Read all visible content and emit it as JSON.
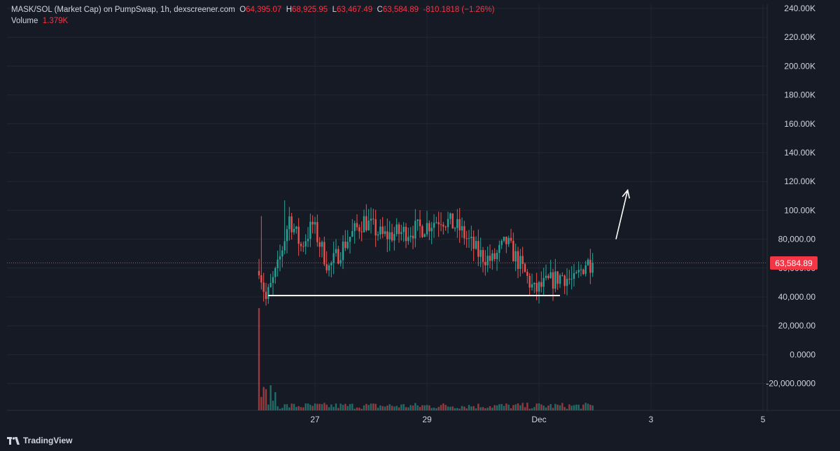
{
  "header": {
    "title": "MASK/SOL (Market Cap) on PumpSwap, 1h, dexscreener.com",
    "o_label": "O",
    "o_value": "64,395.07",
    "h_label": "H",
    "h_value": "68,925.95",
    "l_label": "L",
    "l_value": "63,467.49",
    "c_label": "C",
    "c_value": "63,584.89",
    "change": "-810.1818 (−1.26%)",
    "volume_label": "Volume",
    "volume_value": "1.379K"
  },
  "price_tag": "63,584.89",
  "footer": {
    "brand": "TradingView",
    "logo_icon": "tradingview-logo-icon"
  },
  "colors": {
    "background": "#161a25",
    "up": "#26a69a",
    "down": "#ef5350",
    "grid": "#232734",
    "text": "#d1d4dc",
    "last_price": "#f23645",
    "annotation": "#ffffff"
  },
  "chart_data": {
    "type": "candlestick",
    "title": "MASK/SOL (Market Cap) on PumpSwap, 1h, dexscreener.com",
    "y_axis": {
      "ylim": [
        -35000,
        240000
      ],
      "tick_values": [
        240000,
        220000,
        200000,
        180000,
        160000,
        140000,
        120000,
        100000,
        80000,
        60000,
        40000,
        20000,
        0,
        -20000
      ],
      "tick_labels": [
        "240.00K",
        "220.00K",
        "200.00K",
        "180.00K",
        "160.00K",
        "140.00K",
        "120.00K",
        "100.00K",
        "80,000.00",
        "60,000.00",
        "40,000.00",
        "20,000.00",
        "0.0000",
        "-20,000.0000"
      ]
    },
    "x_axis": {
      "xlim": [
        "Nov 26 12:00",
        "Dec 6 00:00"
      ],
      "tick_labels": [
        "27",
        "29",
        "Dec",
        "3",
        "5"
      ],
      "tick_hours": [
        24,
        72,
        120,
        168,
        216
      ]
    },
    "grid": true,
    "last_price": 63584.89,
    "approximate_keypoints": [
      {
        "hour": 0,
        "value": 62000
      },
      {
        "hour": 3,
        "value": 38000
      },
      {
        "hour": 8,
        "value": 60000
      },
      {
        "hour": 13,
        "value": 95000
      },
      {
        "hour": 18,
        "value": 75000
      },
      {
        "hour": 23,
        "value": 90000
      },
      {
        "hour": 30,
        "value": 60000
      },
      {
        "hour": 38,
        "value": 80000
      },
      {
        "hour": 45,
        "value": 93000
      },
      {
        "hour": 53,
        "value": 82000
      },
      {
        "hour": 62,
        "value": 85000
      },
      {
        "hour": 70,
        "value": 88000
      },
      {
        "hour": 78,
        "value": 95000
      },
      {
        "hour": 86,
        "value": 87000
      },
      {
        "hour": 94,
        "value": 70000
      },
      {
        "hour": 100,
        "value": 65000
      },
      {
        "hour": 106,
        "value": 78000
      },
      {
        "hour": 112,
        "value": 62000
      },
      {
        "hour": 118,
        "value": 44000
      },
      {
        "hour": 124,
        "value": 50000
      },
      {
        "hour": 130,
        "value": 55000
      },
      {
        "hour": 135,
        "value": 50000
      },
      {
        "hour": 140,
        "value": 64000
      },
      {
        "hour": 143,
        "value": 63584
      }
    ],
    "volume_approx_peak_hour": 0,
    "annotations": [
      {
        "type": "horizontal-support-line",
        "value": 41000,
        "from_hour": 4,
        "to_hour": 129
      },
      {
        "type": "arrow-up",
        "from": {
          "hour": 153,
          "value": 80000
        },
        "to": {
          "hour": 158,
          "value": 114000
        }
      }
    ]
  }
}
